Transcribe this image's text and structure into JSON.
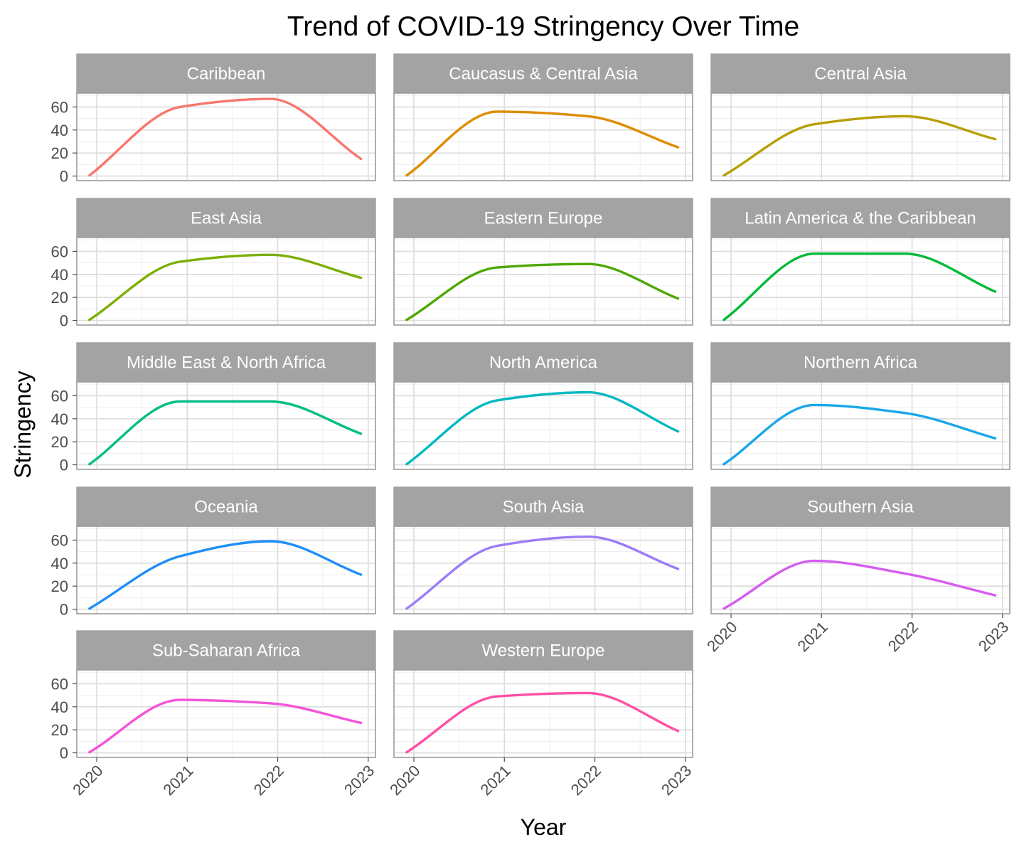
{
  "chart_data": {
    "type": "line",
    "title": "Trend of COVID-19 Stringency Over Time",
    "xlabel": "Year",
    "ylabel": "Stringency",
    "x_ticks": [
      2020,
      2021,
      2022,
      2023
    ],
    "x_tick_labels": [
      "2020",
      "2021",
      "2022",
      "2023"
    ],
    "y_ticks": [
      0,
      20,
      40,
      60
    ],
    "y_tick_labels": [
      "0",
      "20",
      "40",
      "60"
    ],
    "xlim": [
      2019.78,
      2023.08
    ],
    "ylim": [
      -4,
      72
    ],
    "grid": true,
    "legend": "none",
    "facets": "wrap, 3 columns, shared axes",
    "x": [
      2019.92,
      2020.92,
      2021.92,
      2022.92
    ],
    "series": [
      {
        "name": "Caribbean",
        "color": "#F8766D",
        "values": [
          0.5,
          60,
          67,
          15
        ]
      },
      {
        "name": "Caucasus & Central Asia",
        "color": "#DE8C00",
        "values": [
          0.5,
          56,
          52,
          25
        ]
      },
      {
        "name": "Central Asia",
        "color": "#B79F00",
        "values": [
          0.5,
          45,
          52,
          32
        ]
      },
      {
        "name": "East Asia",
        "color": "#7CAE00",
        "values": [
          0.5,
          51,
          57,
          37
        ]
      },
      {
        "name": "Eastern Europe",
        "color": "#4DA800",
        "values": [
          0.5,
          46,
          49,
          19
        ]
      },
      {
        "name": "Latin America & the Caribbean",
        "color": "#00BA38",
        "values": [
          0.5,
          58,
          58,
          25
        ]
      },
      {
        "name": "Middle East & North Africa",
        "color": "#00BE85",
        "values": [
          0.5,
          55,
          55,
          27
        ]
      },
      {
        "name": "North America",
        "color": "#00B8C2",
        "values": [
          0.5,
          56,
          63,
          29
        ]
      },
      {
        "name": "Northern Africa",
        "color": "#1AA7E8",
        "values": [
          0.5,
          52,
          45,
          23
        ]
      },
      {
        "name": "Oceania",
        "color": "#1E8EF7",
        "values": [
          0.5,
          46,
          59,
          30
        ]
      },
      {
        "name": "South Asia",
        "color": "#9A7CF7",
        "values": [
          0.5,
          55,
          63,
          35
        ]
      },
      {
        "name": "Southern Asia",
        "color": "#D65CF0",
        "values": [
          0.5,
          42,
          31,
          12
        ]
      },
      {
        "name": "Sub-Saharan Africa",
        "color": "#F553D8",
        "values": [
          0.5,
          46,
          43,
          26
        ]
      },
      {
        "name": "Western Europe",
        "color": "#FF4FA6",
        "values": [
          0.5,
          49,
          52,
          19
        ]
      }
    ]
  }
}
